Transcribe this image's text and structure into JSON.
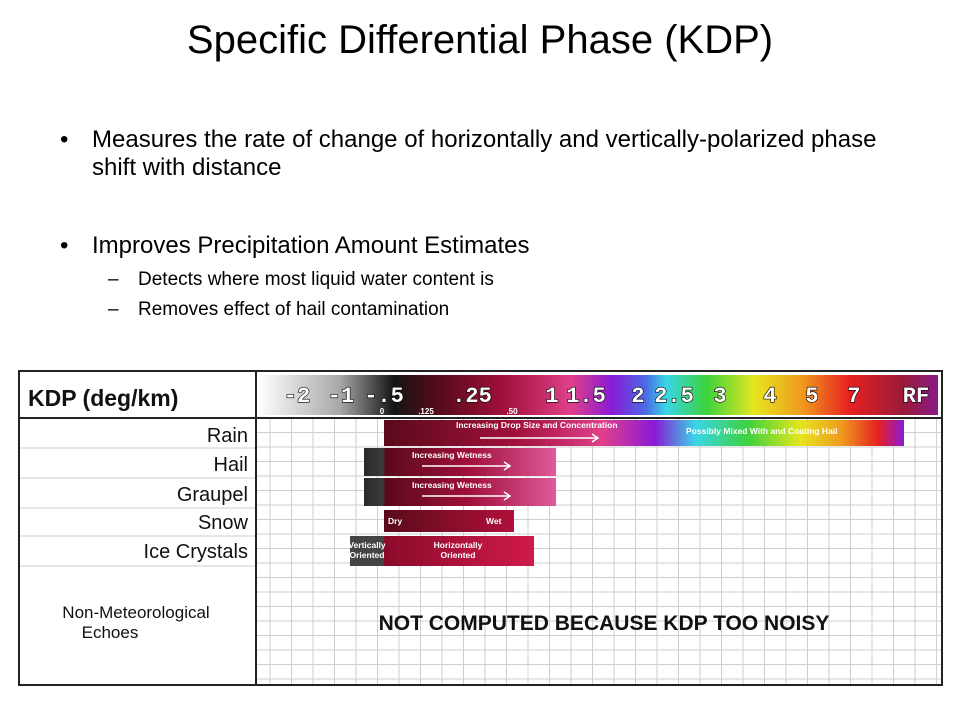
{
  "slide": {
    "title": "Specific Differential Phase (KDP)",
    "bullets": [
      {
        "text": "Measures the rate of change of horizontally and vertically-polarized phase shift with distance",
        "subitems": []
      },
      {
        "text": "Improves Precipitation Amount Estimates",
        "subitems": [
          "Detects where most liquid water content is",
          "Removes effect of hail contamination"
        ]
      }
    ],
    "bullet_symbol": "•",
    "sub_symbol": "–"
  },
  "chart_data": {
    "type": "table",
    "title": "KDP (deg/km)",
    "scale_labels": [
      "-2",
      "-1",
      "-.5",
      ".25",
      "1",
      "1.5",
      "2",
      "2.5",
      "3",
      "4",
      "5",
      "7",
      "RF"
    ],
    "minor_labels": [
      "0",
      ".125",
      ".50"
    ],
    "rows": [
      "Rain",
      "Hail",
      "Graupel",
      "Snow",
      "Ice Crystals",
      "Non-Meteorological Echoes"
    ],
    "bar_annotations": {
      "rain_left": "Increasing Drop Size and Concentration",
      "rain_right": "Possibly Mixed With and Coating Hail",
      "hail": "Increasing Wetness",
      "graupel": "Increasing Wetness",
      "snow_dry": "Dry",
      "snow_wet": "Wet",
      "ice_vertical": "Vertically Oriented",
      "ice_horizontal": "Horizontally Oriented"
    },
    "not_computed": "NOT COMPUTED BECAUSE KDP TOO NOISY",
    "colors": {
      "dark_red": "#5a0a1a",
      "crimson": "#a0103a",
      "magenta": "#e0408a",
      "violet": "#8a1ad6",
      "cyan": "#39d6e6",
      "green": "#3cd23c",
      "yellow": "#e6e61e",
      "orange": "#f09a1e",
      "red": "#e62020",
      "purple": "#8a1a8a",
      "gray": "#444444"
    }
  }
}
